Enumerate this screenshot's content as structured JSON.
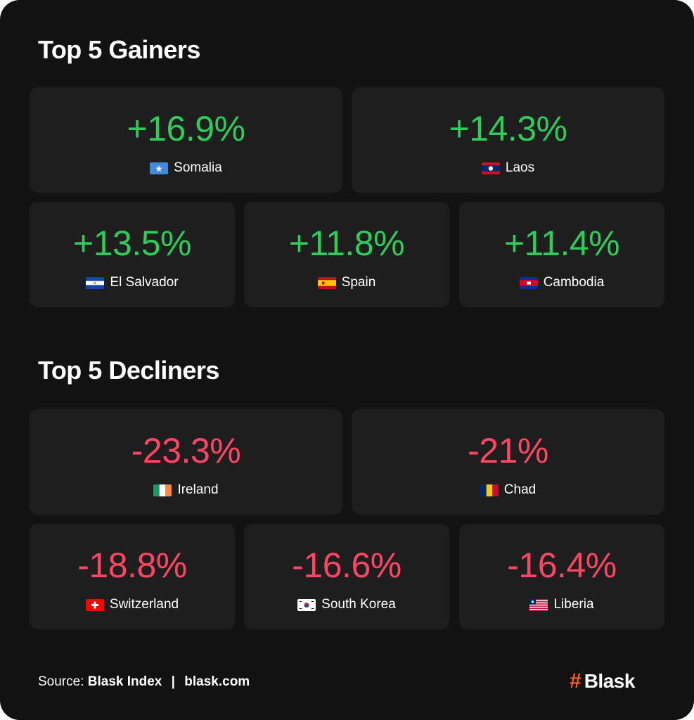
{
  "gainers": {
    "title": "Top 5 Gainers",
    "items": [
      {
        "value": "+16.9%",
        "country": "Somalia",
        "flag": "somalia-flag-icon"
      },
      {
        "value": "+14.3%",
        "country": "Laos",
        "flag": "laos-flag-icon"
      },
      {
        "value": "+13.5%",
        "country": "El Salvador",
        "flag": "el-salvador-flag-icon"
      },
      {
        "value": "+11.8%",
        "country": "Spain",
        "flag": "spain-flag-icon"
      },
      {
        "value": "+11.4%",
        "country": "Cambodia",
        "flag": "cambodia-flag-icon"
      }
    ]
  },
  "decliners": {
    "title": "Top 5 Decliners",
    "items": [
      {
        "value": "-23.3%",
        "country": "Ireland",
        "flag": "ireland-flag-icon"
      },
      {
        "value": "-21%",
        "country": "Chad",
        "flag": "chad-flag-icon"
      },
      {
        "value": "-18.8%",
        "country": "Switzerland",
        "flag": "switzerland-flag-icon"
      },
      {
        "value": "-16.6%",
        "country": "South Korea",
        "flag": "south-korea-flag-icon"
      },
      {
        "value": "-16.4%",
        "country": "Liberia",
        "flag": "liberia-flag-icon"
      }
    ]
  },
  "footer": {
    "source_label": "Source:",
    "source_name": "Blask Index",
    "separator": "|",
    "source_url": "blask.com",
    "logo_symbol": "#",
    "logo_text": "Blask"
  },
  "colors": {
    "background": "#121212",
    "card": "#1e1e1e",
    "gain": "#2ecc5a",
    "loss": "#ff4564",
    "logo_accent": "#ff5a1f"
  }
}
